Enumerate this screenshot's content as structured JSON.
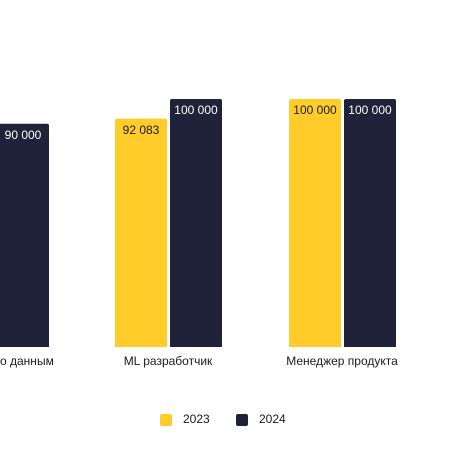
{
  "chart_data": {
    "type": "bar",
    "categories": [
      "о данным",
      "ML разработчик",
      "Менеджер продукта"
    ],
    "series": [
      {
        "name": "2023",
        "color": "#ffcc29",
        "values": [
          null,
          92083,
          100000
        ],
        "value_labels": [
          null,
          "92 083",
          "100 000"
        ]
      },
      {
        "name": "2024",
        "color": "#1f2238",
        "values": [
          90000,
          100000,
          100000
        ],
        "value_labels": [
          "90 000",
          "100 000",
          "100 000"
        ]
      }
    ]
  }
}
